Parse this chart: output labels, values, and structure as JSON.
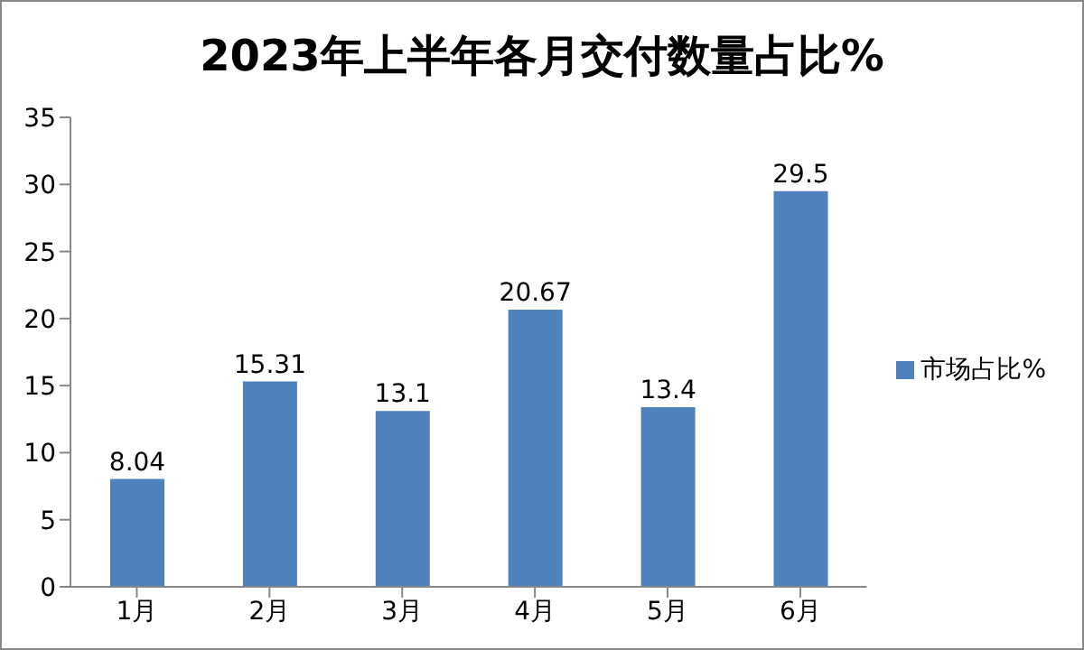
{
  "chart_data": {
    "type": "bar",
    "title": "2023年上半年各月交付数量占比%",
    "categories": [
      "1月",
      "2月",
      "3月",
      "4月",
      "5月",
      "6月"
    ],
    "series": [
      {
        "name": "市场占比%",
        "color": "#4f81bd",
        "values": [
          8.04,
          15.31,
          13.1,
          20.67,
          13.4,
          29.5
        ]
      }
    ],
    "ylim": [
      0,
      35
    ],
    "yticks": [
      0,
      5,
      10,
      15,
      20,
      25,
      30,
      35
    ],
    "grid": false,
    "legend": "right",
    "data_labels": true
  }
}
